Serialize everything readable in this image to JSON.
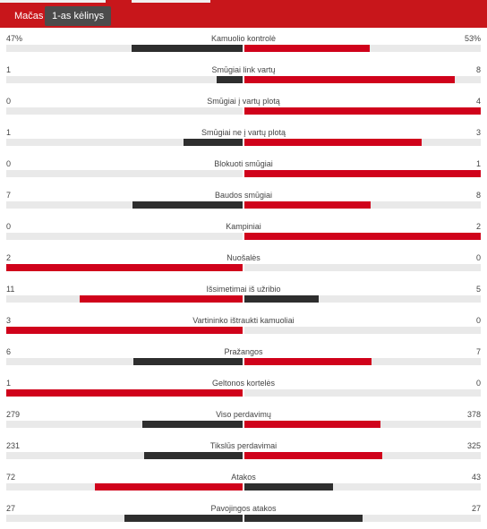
{
  "tabs": [
    {
      "label": "Mačas"
    },
    {
      "label": "1-as kėlinys"
    }
  ],
  "stats": [
    {
      "label": "Kamuolio kontrolė",
      "left": "47%",
      "right": "53%",
      "lv": 47,
      "rv": 53
    },
    {
      "label": "Smūgiai link vartų",
      "left": "1",
      "right": "8",
      "lv": 1,
      "rv": 8
    },
    {
      "label": "Smūgiai į vartų plotą",
      "left": "0",
      "right": "4",
      "lv": 0,
      "rv": 4
    },
    {
      "label": "Smūgiai ne į vartų plotą",
      "left": "1",
      "right": "3",
      "lv": 1,
      "rv": 3
    },
    {
      "label": "Blokuoti smūgiai",
      "left": "0",
      "right": "1",
      "lv": 0,
      "rv": 1
    },
    {
      "label": "Baudos smūgiai",
      "left": "7",
      "right": "8",
      "lv": 7,
      "rv": 8
    },
    {
      "label": "Kampiniai",
      "left": "0",
      "right": "2",
      "lv": 0,
      "rv": 2
    },
    {
      "label": "Nuošalės",
      "left": "2",
      "right": "0",
      "lv": 2,
      "rv": 0
    },
    {
      "label": "Išsimetimai iš užribio",
      "left": "11",
      "right": "5",
      "lv": 11,
      "rv": 5
    },
    {
      "label": "Vartininko ištraukti kamuoliai",
      "left": "3",
      "right": "0",
      "lv": 3,
      "rv": 0
    },
    {
      "label": "Pražangos",
      "left": "6",
      "right": "7",
      "lv": 6,
      "rv": 7
    },
    {
      "label": "Geltonos kortelės",
      "left": "1",
      "right": "0",
      "lv": 1,
      "rv": 0
    },
    {
      "label": "Viso perdavimų",
      "left": "279",
      "right": "378",
      "lv": 279,
      "rv": 378
    },
    {
      "label": "Tikslūs perdavimai",
      "left": "231",
      "right": "325",
      "lv": 231,
      "rv": 325
    },
    {
      "label": "Atakos",
      "left": "72",
      "right": "43",
      "lv": 72,
      "rv": 43
    },
    {
      "label": "Pavojingos atakos",
      "left": "27",
      "right": "27",
      "lv": 27,
      "rv": 27
    }
  ],
  "colors": {
    "brand": "#c8161b",
    "winner": "#d0021b",
    "loser": "#2e2e2e",
    "track": "#e9e9e9"
  }
}
